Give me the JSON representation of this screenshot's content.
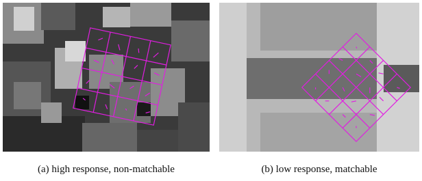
{
  "figure": {
    "panels": [
      {
        "caption": "(a) high response, non-matchable"
      },
      {
        "caption": "(b) low response, matchable"
      }
    ]
  }
}
